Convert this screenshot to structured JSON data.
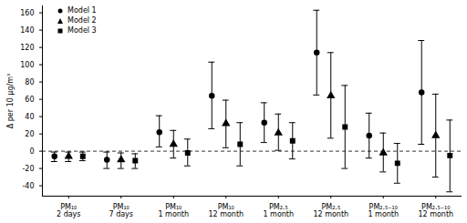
{
  "chart_data": {
    "type": "errorbar",
    "y_label": "Δ per 10 µg/m³",
    "categories": [
      "PM₁₀\n2 days",
      "PM₁₀\n7 days",
      "PM₁₀\n1 month",
      "PM₁₀\n12 month",
      "PM₂.₅\n1 month",
      "PM₂.₅\n12 month",
      "PM₂.₅₋₁₀\n1 month",
      "PM₂.₅₋₁₀\n12 month"
    ],
    "series": [
      {
        "name": "Model 1",
        "color": "#000000",
        "marker": "circle",
        "values": [
          -6,
          -10,
          22,
          64,
          33,
          114,
          18,
          68
        ],
        "lower": [
          -12,
          -20,
          5,
          26,
          10,
          65,
          -8,
          8
        ],
        "upper": [
          -1,
          -1,
          41,
          103,
          56,
          163,
          44,
          128
        ]
      },
      {
        "name": "Model 2",
        "color": "#000000",
        "marker": "triangle",
        "values": [
          -6,
          -10,
          8,
          32,
          21,
          64,
          -2,
          18
        ],
        "lower": [
          -12,
          -20,
          -8,
          4,
          1,
          15,
          -24,
          -30
        ],
        "upper": [
          -1,
          -2,
          24,
          59,
          43,
          114,
          21,
          66
        ]
      },
      {
        "name": "Model 3",
        "color": "#000000",
        "marker": "square",
        "values": [
          -6,
          -11,
          -2,
          8,
          12,
          28,
          -14,
          -5
        ],
        "lower": [
          -11,
          -20,
          -17,
          -17,
          -9,
          -20,
          -37,
          -47
        ],
        "upper": [
          -1,
          -3,
          14,
          33,
          33,
          76,
          9,
          36
        ]
      }
    ],
    "reference_y": 0,
    "ylim": [
      -52,
      168
    ],
    "yticks": [
      -40,
      -20,
      0,
      20,
      40,
      60,
      80,
      100,
      120,
      140,
      160
    ],
    "legend": "top-left",
    "grid": false
  }
}
